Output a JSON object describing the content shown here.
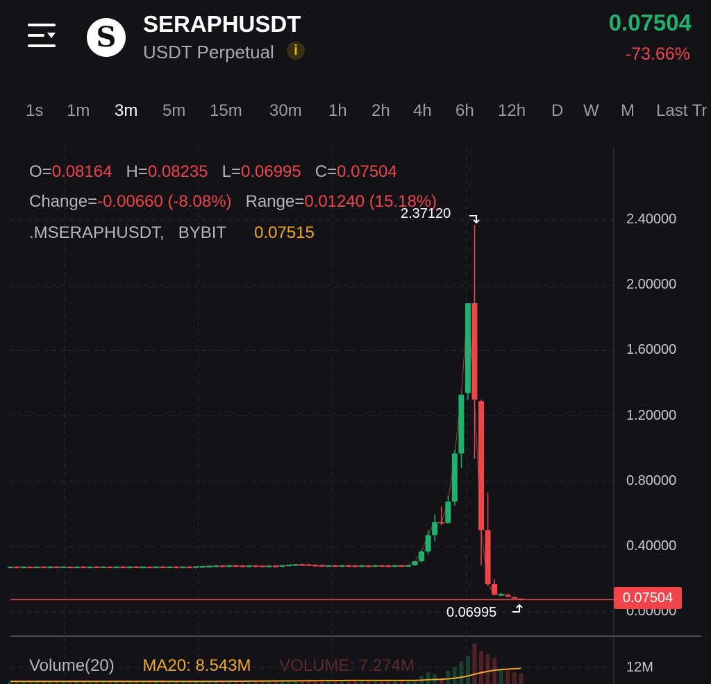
{
  "header": {
    "symbol": "SERAPHUSDT",
    "subtitle": "USDT Perpetual",
    "logo_letter": "S",
    "info_icon": "i",
    "last_price": "0.07504",
    "change_pct": "-73.66%"
  },
  "timeframes": [
    {
      "label": "1s"
    },
    {
      "label": "1m"
    },
    {
      "label": "3m",
      "active": true
    },
    {
      "label": "5m"
    },
    {
      "label": "15m"
    },
    {
      "label": "30m"
    },
    {
      "label": "1h"
    },
    {
      "label": "2h"
    },
    {
      "label": "4h"
    },
    {
      "label": "6h"
    },
    {
      "label": "12h"
    },
    {
      "label": "D"
    },
    {
      "label": "W"
    },
    {
      "label": "M"
    },
    {
      "label": "Last Tr"
    }
  ],
  "legend": {
    "o_label": "O=",
    "o": "0.08164",
    "h_label": "H=",
    "h": "0.08235",
    "l_label": "L=",
    "l": "0.06995",
    "c_label": "C=",
    "c": "0.07504",
    "change_label": "Change=",
    "change": "-0.00660 (-8.08%)",
    "range_label": "Range=",
    "range": "0.01240 (15.18%)",
    "mark_symbol": ".MSERAPHUSDT,",
    "exchange": "BYBIT",
    "mark_price": "0.07515"
  },
  "colors": {
    "up": "#20b26c",
    "down": "#ef454a",
    "ma": "#f0a82b",
    "background": "#121217"
  },
  "chart_data": {
    "type": "candlestick",
    "y_ticks": [
      "2.40000",
      "2.00000",
      "1.60000",
      "1.20000",
      "0.80000",
      "0.40000",
      "0.00000"
    ],
    "y_tick_values": [
      2.4,
      2.0,
      1.6,
      1.2,
      0.8,
      0.4,
      0.0
    ],
    "ylim": [
      0,
      2.4
    ],
    "grid": true,
    "high_marker": "2.37120",
    "low_marker": "0.06995",
    "current_price": 0.07504,
    "current_price_label": "0.07504",
    "candles_ohlc": [
      [
        0.275,
        0.279,
        0.272,
        0.276
      ],
      [
        0.276,
        0.279,
        0.273,
        0.275
      ],
      [
        0.275,
        0.278,
        0.272,
        0.276
      ],
      [
        0.276,
        0.279,
        0.273,
        0.274
      ],
      [
        0.274,
        0.278,
        0.272,
        0.276
      ],
      [
        0.276,
        0.279,
        0.273,
        0.275
      ],
      [
        0.275,
        0.278,
        0.272,
        0.276
      ],
      [
        0.276,
        0.279,
        0.273,
        0.275
      ],
      [
        0.275,
        0.278,
        0.272,
        0.276
      ],
      [
        0.276,
        0.279,
        0.273,
        0.274
      ],
      [
        0.274,
        0.278,
        0.272,
        0.276
      ],
      [
        0.276,
        0.279,
        0.273,
        0.275
      ],
      [
        0.275,
        0.278,
        0.272,
        0.276
      ],
      [
        0.276,
        0.279,
        0.273,
        0.275
      ],
      [
        0.275,
        0.278,
        0.272,
        0.276
      ],
      [
        0.276,
        0.279,
        0.273,
        0.274
      ],
      [
        0.274,
        0.278,
        0.272,
        0.276
      ],
      [
        0.276,
        0.279,
        0.273,
        0.275
      ],
      [
        0.275,
        0.278,
        0.272,
        0.276
      ],
      [
        0.276,
        0.279,
        0.273,
        0.275
      ],
      [
        0.275,
        0.278,
        0.272,
        0.276
      ],
      [
        0.276,
        0.279,
        0.273,
        0.274
      ],
      [
        0.274,
        0.278,
        0.272,
        0.276
      ],
      [
        0.276,
        0.279,
        0.273,
        0.275
      ],
      [
        0.275,
        0.278,
        0.272,
        0.276
      ],
      [
        0.276,
        0.279,
        0.273,
        0.275
      ],
      [
        0.275,
        0.278,
        0.272,
        0.276
      ],
      [
        0.276,
        0.279,
        0.273,
        0.275
      ],
      [
        0.275,
        0.278,
        0.272,
        0.277
      ],
      [
        0.277,
        0.281,
        0.275,
        0.279
      ],
      [
        0.279,
        0.283,
        0.276,
        0.281
      ],
      [
        0.281,
        0.285,
        0.278,
        0.283
      ],
      [
        0.283,
        0.287,
        0.28,
        0.282
      ],
      [
        0.282,
        0.286,
        0.279,
        0.284
      ],
      [
        0.284,
        0.288,
        0.281,
        0.283
      ],
      [
        0.283,
        0.287,
        0.28,
        0.281
      ],
      [
        0.281,
        0.285,
        0.278,
        0.283
      ],
      [
        0.283,
        0.287,
        0.28,
        0.282
      ],
      [
        0.282,
        0.286,
        0.279,
        0.28
      ],
      [
        0.28,
        0.284,
        0.277,
        0.282
      ],
      [
        0.282,
        0.286,
        0.279,
        0.281
      ],
      [
        0.281,
        0.285,
        0.278,
        0.284
      ],
      [
        0.284,
        0.289,
        0.281,
        0.288
      ],
      [
        0.288,
        0.293,
        0.285,
        0.291
      ],
      [
        0.291,
        0.295,
        0.287,
        0.29
      ],
      [
        0.29,
        0.294,
        0.286,
        0.287
      ],
      [
        0.287,
        0.291,
        0.283,
        0.285
      ],
      [
        0.285,
        0.289,
        0.282,
        0.283
      ],
      [
        0.283,
        0.287,
        0.28,
        0.284
      ],
      [
        0.284,
        0.288,
        0.281,
        0.282
      ],
      [
        0.282,
        0.286,
        0.279,
        0.284
      ],
      [
        0.284,
        0.288,
        0.281,
        0.283
      ],
      [
        0.283,
        0.287,
        0.28,
        0.282
      ],
      [
        0.282,
        0.286,
        0.279,
        0.283
      ],
      [
        0.283,
        0.287,
        0.28,
        0.282
      ],
      [
        0.282,
        0.286,
        0.279,
        0.284
      ],
      [
        0.284,
        0.288,
        0.281,
        0.283
      ],
      [
        0.283,
        0.287,
        0.28,
        0.282
      ],
      [
        0.282,
        0.286,
        0.279,
        0.284
      ],
      [
        0.284,
        0.288,
        0.281,
        0.283
      ],
      [
        0.283,
        0.287,
        0.28,
        0.285
      ],
      [
        0.285,
        0.295,
        0.282,
        0.31
      ],
      [
        0.31,
        0.38,
        0.3,
        0.37
      ],
      [
        0.37,
        0.5,
        0.35,
        0.47
      ],
      [
        0.47,
        0.595,
        0.43,
        0.55
      ],
      [
        0.55,
        0.645,
        0.53,
        0.545
      ],
      [
        0.545,
        0.71,
        0.54,
        0.675
      ],
      [
        0.675,
        0.99,
        0.65,
        0.97
      ],
      [
        0.97,
        1.33,
        0.88,
        1.33
      ],
      [
        1.34,
        1.89,
        1.3,
        1.89
      ],
      [
        1.89,
        2.3712,
        0.94,
        1.3
      ],
      [
        1.29,
        1.3,
        0.285,
        0.5
      ],
      [
        0.5,
        0.73,
        0.16,
        0.17
      ],
      [
        0.17,
        0.2,
        0.1,
        0.105
      ],
      [
        0.1,
        0.115,
        0.095,
        0.11
      ],
      [
        0.105,
        0.112,
        0.09,
        0.095
      ],
      [
        0.09,
        0.095,
        0.082,
        0.085
      ],
      [
        0.08164,
        0.08235,
        0.06995,
        0.07504
      ]
    ],
    "volume_label": "Volume(20)",
    "ma20_label": "MA20: 8.543M",
    "volume_text": "VOLUME: 7.274M",
    "volume_axis_tick": "12M",
    "volumes_m": [
      3,
      3,
      3,
      3,
      3,
      3,
      3,
      3,
      3,
      3,
      3,
      3,
      3,
      3,
      3,
      3,
      3,
      3,
      3,
      3,
      3,
      3,
      3,
      3,
      3,
      3,
      3,
      3,
      3,
      3,
      3,
      3,
      3.5,
      3.5,
      3.5,
      3.5,
      3.5,
      3.5,
      3.5,
      3.5,
      3.5,
      3.5,
      3.5,
      3.5,
      3.5,
      3.5,
      3.5,
      3.5,
      3.5,
      3.5,
      3.5,
      3.5,
      3.5,
      3.5,
      3.5,
      3.5,
      3.5,
      3.5,
      3.5,
      3.5,
      3.5,
      4,
      6,
      8,
      7,
      5,
      9,
      11,
      14,
      17,
      24,
      20,
      18,
      16,
      10,
      9,
      8,
      7.274
    ]
  }
}
